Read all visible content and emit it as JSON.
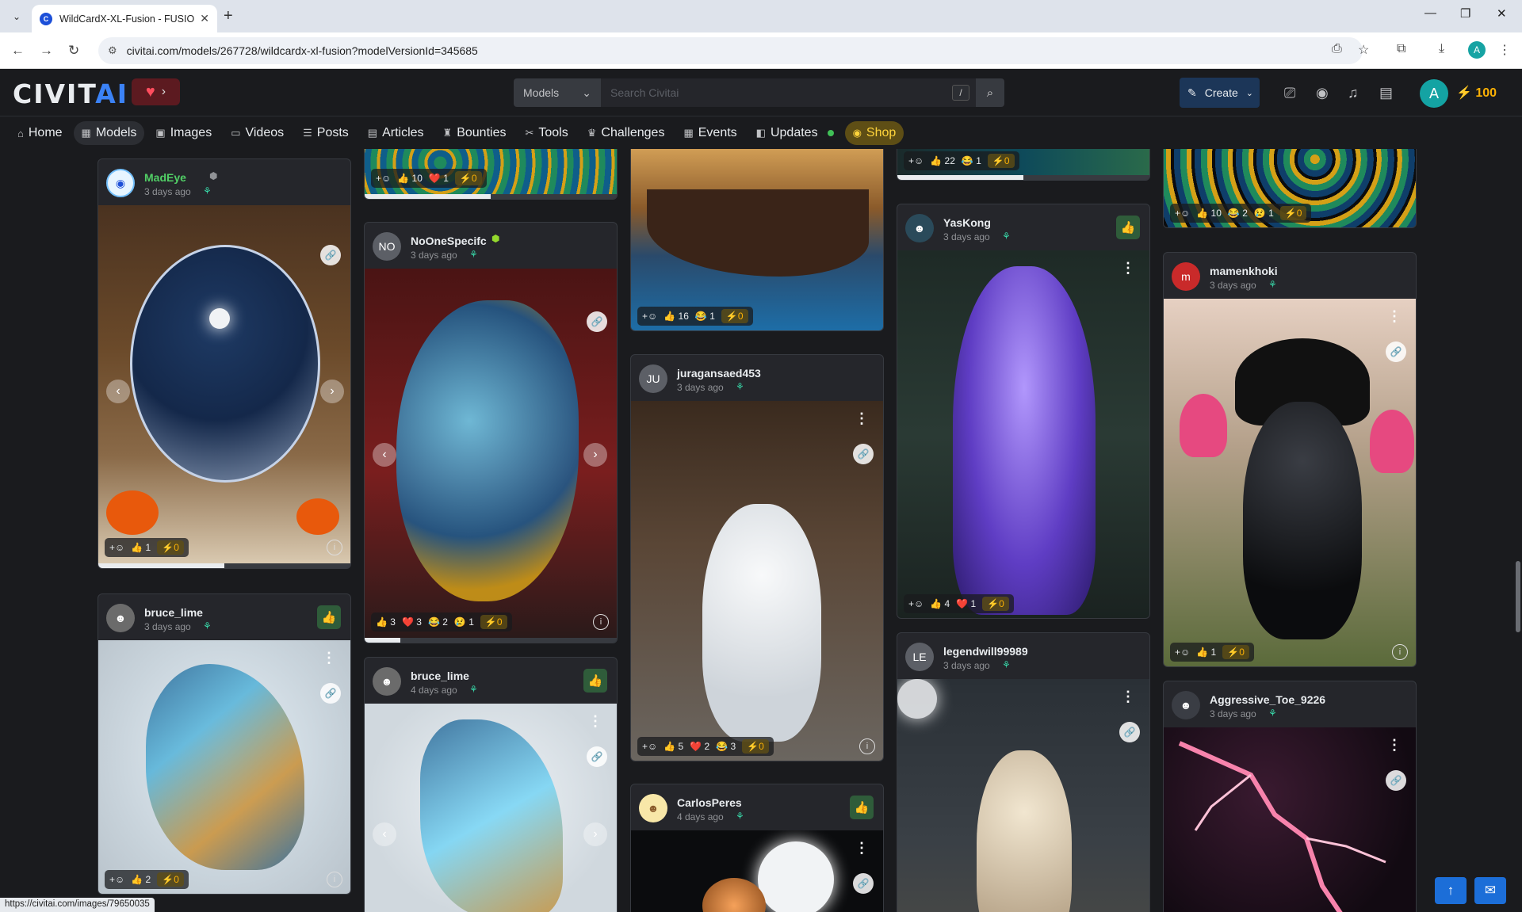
{
  "browser": {
    "tab_title": "WildCardX-XL-Fusion - FUSION",
    "url": "civitai.com/models/267728/wildcardx-xl-fusion?modelVersionId=345685",
    "profile_letter": "A",
    "status_url": "https://civitai.com/images/79650035"
  },
  "header": {
    "logo_main": "CIVIT",
    "logo_accent": "AI",
    "search_type": "Models",
    "search_placeholder": "Search Civitai",
    "search_shortcut": "/",
    "create_label": "Create",
    "avatar_letter": "A",
    "buzz_amount": "100"
  },
  "nav": {
    "items": [
      {
        "label": "Home",
        "icon": "home-icon",
        "glyph": "⌂"
      },
      {
        "label": "Models",
        "icon": "grid-icon",
        "glyph": "▦"
      },
      {
        "label": "Images",
        "icon": "image-icon",
        "glyph": "▣"
      },
      {
        "label": "Videos",
        "icon": "video-icon",
        "glyph": "▭"
      },
      {
        "label": "Posts",
        "icon": "posts-icon",
        "glyph": "☰"
      },
      {
        "label": "Articles",
        "icon": "article-icon",
        "glyph": "▤"
      },
      {
        "label": "Bounties",
        "icon": "bounty-icon",
        "glyph": "♜"
      },
      {
        "label": "Tools",
        "icon": "tools-icon",
        "glyph": "✂"
      },
      {
        "label": "Challenges",
        "icon": "trophy-icon",
        "glyph": "♛"
      },
      {
        "label": "Events",
        "icon": "calendar-icon",
        "glyph": "▦"
      },
      {
        "label": "Updates",
        "icon": "updates-icon",
        "glyph": "◧"
      },
      {
        "label": "Shop",
        "icon": "shop-icon",
        "glyph": "◉"
      }
    ]
  },
  "cards": {
    "madeye": {
      "user": "MadEye",
      "time": "3 days ago",
      "reactions": {
        "like": "1",
        "buzz": "0"
      },
      "progress": 0.5
    },
    "col2_top": {
      "reactions": {
        "like": "10",
        "heart": "1",
        "buzz": "0"
      },
      "progress": 0.5
    },
    "noonespecifc": {
      "user": "NoOneSpecifc",
      "initials": "NO",
      "time": "3 days ago",
      "reactions": {
        "like": "3",
        "heart": "3",
        "laugh": "2",
        "cry": "1",
        "buzz": "0"
      },
      "progress": 0.14
    },
    "bruce_lime_1": {
      "user": "bruce_lime",
      "time": "3 days ago",
      "reactions": {
        "like": "2",
        "buzz": "0"
      }
    },
    "bruce_lime_2": {
      "user": "bruce_lime",
      "time": "4 days ago"
    },
    "col3_top": {
      "reactions": {
        "like": "16",
        "laugh": "1",
        "buzz": "0"
      }
    },
    "juragansaed453": {
      "user": "juragansaed453",
      "initials": "JU",
      "time": "3 days ago",
      "reactions": {
        "like": "5",
        "heart": "2",
        "laugh": "3",
        "buzz": "0"
      }
    },
    "carlosperes": {
      "user": "CarlosPeres",
      "time": "4 days ago"
    },
    "col4_top": {
      "reactions": {
        "like": "22",
        "laugh": "1",
        "buzz": "0"
      },
      "progress": 0.5
    },
    "yaskong": {
      "user": "YasKong",
      "time": "3 days ago",
      "reactions": {
        "like": "4",
        "heart": "1",
        "buzz": "0"
      }
    },
    "legendwill99989": {
      "user": "legendwill99989",
      "initials": "LE",
      "time": "3 days ago"
    },
    "col5_top": {
      "reactions": {
        "like": "10",
        "laugh": "2",
        "cry": "1",
        "buzz": "0"
      }
    },
    "mamenkhoki": {
      "user": "mamenkhoki",
      "initials": "m",
      "time": "3 days ago",
      "reactions": {
        "like": "1",
        "buzz": "0"
      }
    },
    "aggressive_toe": {
      "user": "Aggressive_Toe_9226",
      "time": "3 days ago"
    }
  },
  "colors": {
    "accent": "#3b82f6",
    "buzz": "#fab005",
    "like": "#69db7c",
    "shop": "#ffd43b"
  }
}
